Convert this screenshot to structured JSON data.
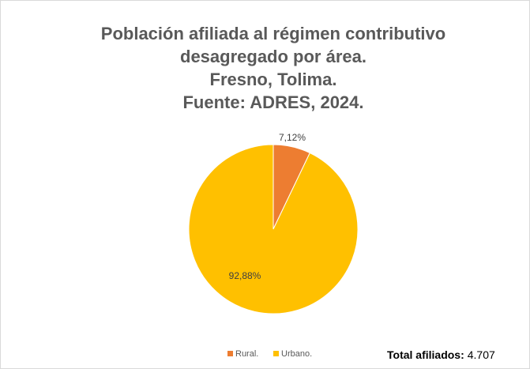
{
  "chart_data": {
    "type": "pie",
    "title": [
      "Población afiliada al régimen contributivo",
      "desagregado por área.",
      "Fresno, Tolima.",
      "Fuente: ADRES, 2024."
    ],
    "categories": [
      "Rural.",
      "Urbano."
    ],
    "values": [
      7.12,
      92.88
    ],
    "value_labels": [
      "7,12%",
      "92,88%"
    ],
    "colors": [
      "#ED7D31",
      "#FFC000"
    ],
    "legend": "bottom",
    "annotation": {
      "label": "Total afiliados:",
      "value": "4.707"
    }
  }
}
